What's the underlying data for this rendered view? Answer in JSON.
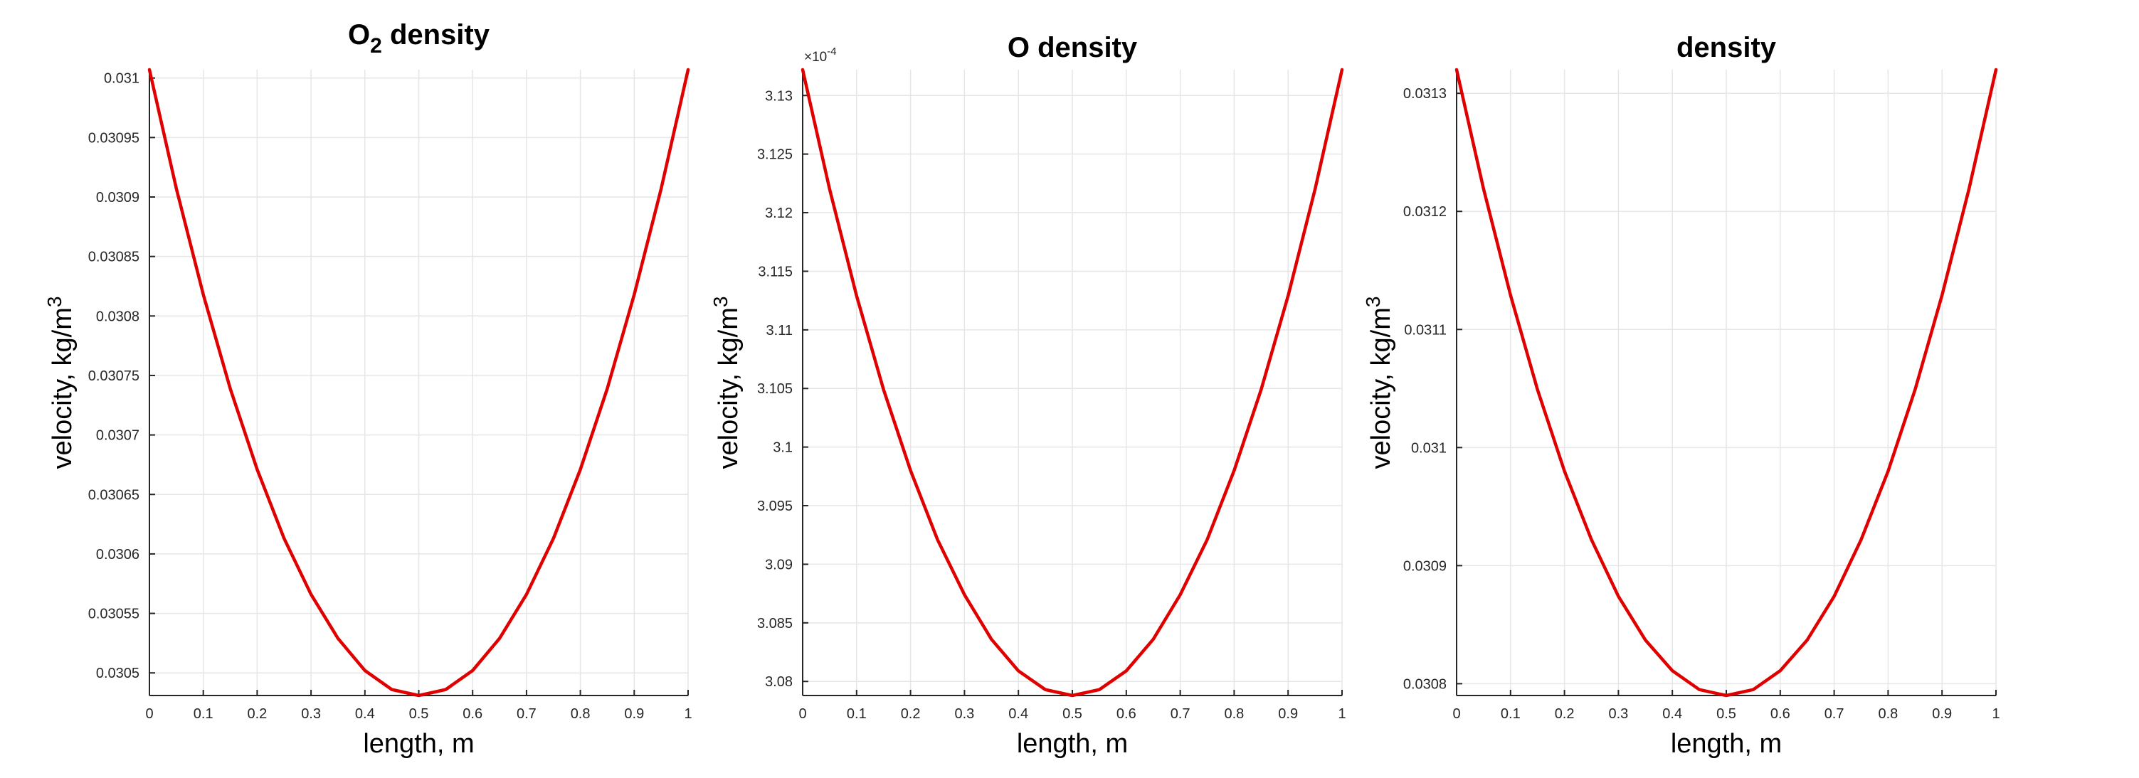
{
  "chart_data": [
    {
      "type": "line",
      "title": "O2 density",
      "title_main": "O",
      "title_sub": "2",
      "title_rest": " density",
      "xlabel": "length, m",
      "ylabel_prefix": "velocity, kg/m",
      "ylabel_sup": "3",
      "exponent_label": "",
      "xlim": [
        0,
        1
      ],
      "ylim": [
        0.030481,
        0.031007
      ],
      "xticks": [
        0,
        0.1,
        0.2,
        0.3,
        0.4,
        0.5,
        0.6,
        0.7,
        0.8,
        0.9,
        1
      ],
      "xtick_labels": [
        "0",
        "0.1",
        "0.2",
        "0.3",
        "0.4",
        "0.5",
        "0.6",
        "0.7",
        "0.8",
        "0.9",
        "1"
      ],
      "yticks": [
        0.03105,
        0.031,
        0.03095,
        0.0309,
        0.03085,
        0.0308,
        0.03075,
        0.0307,
        0.03065,
        0.0306,
        0.03055,
        0.0305
      ],
      "ytick_labels": [
        "0.031",
        "0.03095",
        "0.0309",
        "0.03085",
        "0.0308",
        "0.03075",
        "0.0307",
        "0.03065",
        "0.0306",
        "0.03055",
        "0.0305"
      ],
      "ytick_values": [
        0.031,
        0.03095,
        0.0309,
        0.03085,
        0.0308,
        0.03075,
        0.0307,
        0.03065,
        0.0306,
        0.03055,
        0.0305
      ],
      "grid": true,
      "line_color": "#e00000",
      "series": [
        {
          "x": [
            0,
            0.05,
            0.1,
            0.15,
            0.2,
            0.25,
            0.3,
            0.35,
            0.4,
            0.45,
            0.5,
            0.55,
            0.6,
            0.65,
            0.7,
            0.75,
            0.8,
            0.85,
            0.9,
            0.95,
            1
          ],
          "y": [
            0.031007,
            0.030907,
            0.030818,
            0.030739,
            0.030671,
            0.030613,
            0.030566,
            0.030529,
            0.030502,
            0.030486,
            0.030481,
            0.030486,
            0.030502,
            0.030529,
            0.030566,
            0.030613,
            0.030671,
            0.030739,
            0.030818,
            0.030907,
            0.031007
          ]
        }
      ]
    },
    {
      "type": "line",
      "title": "O density",
      "title_main": "O density",
      "title_sub": "",
      "title_rest": "",
      "xlabel": "length, m",
      "ylabel_prefix": "velocity, kg/m",
      "ylabel_sup": "3",
      "exponent_label": "×10",
      "exponent_power": "-4",
      "xlim": [
        0,
        1
      ],
      "ylim": [
        3.0788,
        3.1322
      ],
      "xticks": [
        0,
        0.1,
        0.2,
        0.3,
        0.4,
        0.5,
        0.6,
        0.7,
        0.8,
        0.9,
        1
      ],
      "xtick_labels": [
        "0",
        "0.1",
        "0.2",
        "0.3",
        "0.4",
        "0.5",
        "0.6",
        "0.7",
        "0.8",
        "0.9",
        "1"
      ],
      "ytick_labels": [
        "3.13",
        "3.125",
        "3.12",
        "3.115",
        "3.11",
        "3.105",
        "3.1",
        "3.095",
        "3.09",
        "3.085",
        "3.08"
      ],
      "ytick_values": [
        3.13,
        3.125,
        3.12,
        3.115,
        3.11,
        3.105,
        3.1,
        3.095,
        3.09,
        3.085,
        3.08
      ],
      "grid": true,
      "line_color": "#e00000",
      "series": [
        {
          "x": [
            0,
            0.05,
            0.1,
            0.15,
            0.2,
            0.25,
            0.3,
            0.35,
            0.4,
            0.45,
            0.5,
            0.55,
            0.6,
            0.65,
            0.7,
            0.75,
            0.8,
            0.85,
            0.9,
            0.95,
            1
          ],
          "y": [
            3.1322,
            3.122,
            3.1129,
            3.1049,
            3.098,
            3.0921,
            3.0874,
            3.0836,
            3.0809,
            3.0793,
            3.0788,
            3.0793,
            3.0809,
            3.0836,
            3.0874,
            3.0921,
            3.098,
            3.1049,
            3.1129,
            3.122,
            3.1322
          ]
        }
      ]
    },
    {
      "type": "line",
      "title": "density",
      "title_main": "density",
      "title_sub": "",
      "title_rest": "",
      "xlabel": "length, m",
      "ylabel_prefix": "velocity, kg/m",
      "ylabel_sup": "3",
      "exponent_label": "",
      "xlim": [
        0,
        1
      ],
      "ylim": [
        0.03079,
        0.03132
      ],
      "xticks": [
        0,
        0.1,
        0.2,
        0.3,
        0.4,
        0.5,
        0.6,
        0.7,
        0.8,
        0.9,
        1
      ],
      "xtick_labels": [
        "0",
        "0.1",
        "0.2",
        "0.3",
        "0.4",
        "0.5",
        "0.6",
        "0.7",
        "0.8",
        "0.9",
        "1"
      ],
      "ytick_labels": [
        "0.0313",
        "0.0312",
        "0.0311",
        "0.031",
        "0.0309",
        "0.0308"
      ],
      "ytick_values": [
        0.0313,
        0.0312,
        0.0311,
        0.031,
        0.0309,
        0.0308
      ],
      "grid": true,
      "line_color": "#e00000",
      "series": [
        {
          "x": [
            0,
            0.05,
            0.1,
            0.15,
            0.2,
            0.25,
            0.3,
            0.35,
            0.4,
            0.45,
            0.5,
            0.55,
            0.6,
            0.65,
            0.7,
            0.75,
            0.8,
            0.85,
            0.9,
            0.95,
            1
          ],
          "y": [
            0.03132,
            0.031219,
            0.031129,
            0.031049,
            0.03098,
            0.030922,
            0.030874,
            0.030837,
            0.030811,
            0.030795,
            0.03079,
            0.030795,
            0.030811,
            0.030837,
            0.030874,
            0.030922,
            0.03098,
            0.031049,
            0.031129,
            0.031219,
            0.03132
          ]
        }
      ]
    }
  ]
}
